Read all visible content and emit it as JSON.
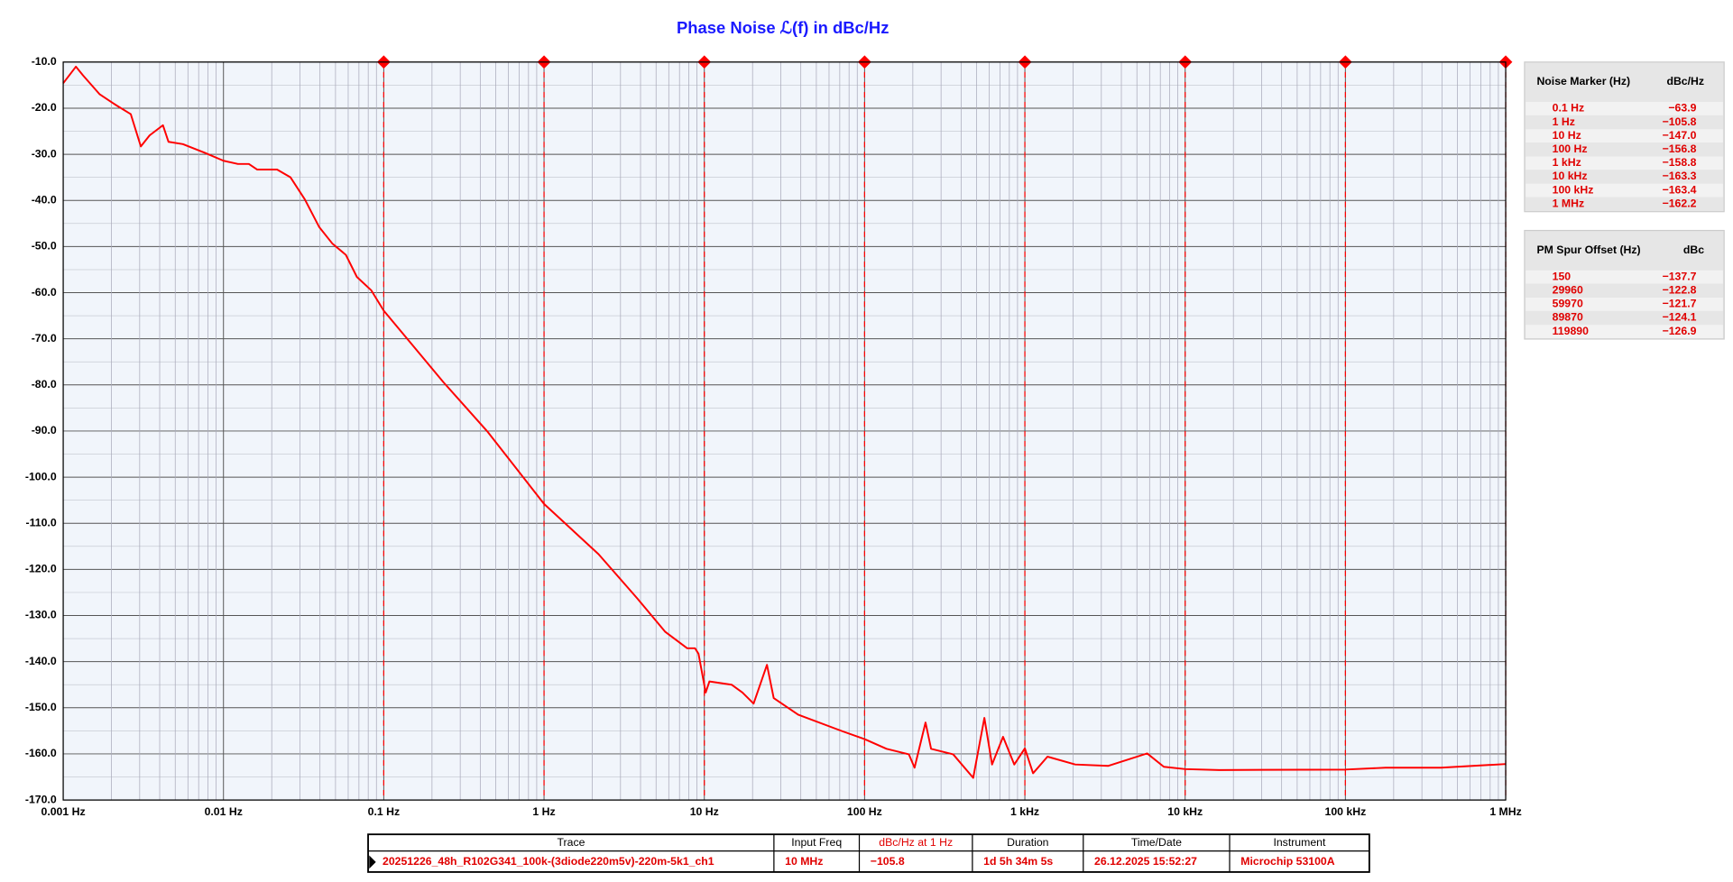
{
  "chart_data": {
    "type": "line",
    "title": "Phase Noise ℒ(f) in dBc/Hz",
    "log_x": true,
    "grid": true,
    "color": "#ff0000",
    "xlim": [
      0.001,
      1000000
    ],
    "ylim": [
      -170,
      -10
    ],
    "xticks": [
      {
        "value": 0.001,
        "label": "0.001 Hz"
      },
      {
        "value": 0.01,
        "label": "0.01 Hz"
      },
      {
        "value": 0.1,
        "label": "0.1 Hz"
      },
      {
        "value": 1,
        "label": "1 Hz"
      },
      {
        "value": 10,
        "label": "10 Hz"
      },
      {
        "value": 100,
        "label": "100 Hz"
      },
      {
        "value": 1000,
        "label": "1 kHz"
      },
      {
        "value": 10000,
        "label": "10 kHz"
      },
      {
        "value": 100000,
        "label": "100 kHz"
      },
      {
        "value": 1000000,
        "label": "1 MHz"
      }
    ],
    "yticks": [
      {
        "value": -10,
        "label": "-10.0"
      },
      {
        "value": -20,
        "label": "-20.0"
      },
      {
        "value": -30,
        "label": "-30.0"
      },
      {
        "value": -40,
        "label": "-40.0"
      },
      {
        "value": -50,
        "label": "-50.0"
      },
      {
        "value": -60,
        "label": "-60.0"
      },
      {
        "value": -70,
        "label": "-70.0"
      },
      {
        "value": -80,
        "label": "-80.0"
      },
      {
        "value": -90,
        "label": "-90.0"
      },
      {
        "value": -100,
        "label": "-100.0"
      },
      {
        "value": -110,
        "label": "-110.0"
      },
      {
        "value": -120,
        "label": "-120.0"
      },
      {
        "value": -130,
        "label": "-130.0"
      },
      {
        "value": -140,
        "label": "-140.0"
      },
      {
        "value": -150,
        "label": "-150.0"
      },
      {
        "value": -160,
        "label": "-160.0"
      },
      {
        "value": -170,
        "label": "-170.0"
      }
    ],
    "x": [
      0.001,
      0.0012,
      0.00133,
      0.00169,
      0.00215,
      0.00264,
      0.00305,
      0.00346,
      0.00419,
      0.00454,
      0.00558,
      0.00768,
      0.01,
      0.0123,
      0.0144,
      0.0162,
      0.0216,
      0.0262,
      0.0322,
      0.0396,
      0.0479,
      0.058,
      0.068,
      0.0836,
      0.1,
      0.2355,
      0.4457,
      1,
      2.188,
      3.82,
      5.69,
      7.82,
      8.75,
      9.2,
      10.2,
      10.76,
      14.8,
      17.3,
      20.3,
      24.6,
      27.1,
      38.5,
      72.8,
      100,
      137,
      189,
      205,
      240,
      260,
      357,
      476,
      559,
      624,
      731,
      859,
      1000,
      1125,
      1384,
      2061,
      3319,
      5796,
      7362,
      10000,
      16330,
      100000,
      178000,
      394000,
      1000000
    ],
    "values": [
      -14.6,
      -11.0,
      -12.9,
      -17.0,
      -19.4,
      -21.3,
      -28.3,
      -25.9,
      -23.7,
      -27.3,
      -27.8,
      -29.7,
      -31.4,
      -32.1,
      -32.1,
      -33.3,
      -33.3,
      -35.0,
      -39.8,
      -45.8,
      -49.4,
      -51.8,
      -56.6,
      -59.5,
      -63.9,
      -79.4,
      -90.2,
      -105.8,
      -116.7,
      -126.3,
      -133.5,
      -137.1,
      -137.1,
      -138.3,
      -146.7,
      -144.3,
      -145.0,
      -146.7,
      -149.1,
      -140.7,
      -147.9,
      -151.5,
      -155.1,
      -156.8,
      -158.9,
      -160.1,
      -163.0,
      -153.2,
      -158.9,
      -160.1,
      -165.2,
      -152.2,
      -162.3,
      -156.3,
      -162.3,
      -158.8,
      -164.2,
      -160.6,
      -162.3,
      -162.6,
      -159.9,
      -162.8,
      -163.3,
      -163.5,
      -163.4,
      -163.0,
      -163.0,
      -162.2
    ],
    "markers": {
      "header": [
        "Noise Marker (Hz)",
        "dBc/Hz"
      ],
      "x": [
        0.1,
        1,
        10,
        100,
        1000,
        10000,
        100000,
        1000000
      ],
      "labels": [
        "0.1 Hz",
        "1 Hz",
        "10 Hz",
        "100 Hz",
        "1 kHz",
        "10 kHz",
        "100 kHz",
        "1 MHz"
      ],
      "values": [
        -63.9,
        -105.8,
        -147.0,
        -156.8,
        -158.8,
        -163.3,
        -163.4,
        -162.2
      ],
      "value_labels": [
        "−63.9",
        "−105.8",
        "−147.0",
        "−156.8",
        "−158.8",
        "−163.3",
        "−163.4",
        "−162.2"
      ]
    },
    "spurs": {
      "header": [
        "PM Spur Offset (Hz)",
        "dBc"
      ],
      "offsets": [
        150,
        29960,
        59970,
        89870,
        119890
      ],
      "values": [
        -137.7,
        -122.8,
        -121.7,
        -124.1,
        -126.9
      ],
      "value_labels": [
        "−137.7",
        "−122.8",
        "−121.7",
        "−124.1",
        "−126.9"
      ]
    },
    "trace_table": {
      "headers": [
        "Trace",
        "Input Freq",
        "dBc/Hz at 1 Hz",
        "Duration",
        "Time/Date",
        "Instrument"
      ],
      "row": [
        "20251226_48h_R102G341_100k-(3diode220m5v)-220m-5k1_ch1",
        "10 MHz",
        "−105.8",
        "1d 5h 34m 5s",
        "26.12.2025 15:52:27",
        "Microchip 53100A"
      ]
    }
  }
}
